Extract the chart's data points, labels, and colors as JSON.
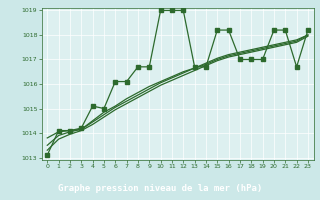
{
  "xlabel": "Graphe pression niveau de la mer (hPa)",
  "ylim": [
    1013.0,
    1019.0
  ],
  "xlim": [
    -0.5,
    23.5
  ],
  "yticks": [
    1013,
    1014,
    1015,
    1016,
    1017,
    1018,
    1019
  ],
  "xticks": [
    0,
    1,
    2,
    3,
    4,
    5,
    6,
    7,
    8,
    9,
    10,
    11,
    12,
    13,
    14,
    15,
    16,
    17,
    18,
    19,
    20,
    21,
    22,
    23
  ],
  "bg_color": "#cce8e8",
  "plot_bg": "#ddf0f0",
  "line_color": "#2d6a2d",
  "label_bg": "#3a7a3a",
  "label_fg": "#ffffff",
  "marker": "s",
  "markersize": 2.2,
  "linewidth": 0.9,
  "series_main": [
    1013.1,
    1014.1,
    1014.1,
    1014.2,
    1015.1,
    1015.0,
    1016.1,
    1016.1,
    1016.7,
    1016.7,
    1019.0,
    1019.0,
    1019.0,
    1016.7,
    1016.7,
    1018.2,
    1018.2,
    1017.0,
    1017.0,
    1017.0,
    1018.2,
    1018.2,
    1016.7,
    1018.2
  ],
  "series_trend1": [
    1013.8,
    1014.05,
    1014.1,
    1014.15,
    1014.5,
    1014.85,
    1015.1,
    1015.4,
    1015.65,
    1015.9,
    1016.1,
    1016.3,
    1016.5,
    1016.65,
    1016.8,
    1017.0,
    1017.15,
    1017.25,
    1017.35,
    1017.45,
    1017.55,
    1017.65,
    1017.75,
    1018.0
  ],
  "series_trend2": [
    1013.5,
    1013.9,
    1014.05,
    1014.15,
    1014.45,
    1014.75,
    1015.05,
    1015.3,
    1015.55,
    1015.8,
    1016.05,
    1016.25,
    1016.45,
    1016.65,
    1016.85,
    1017.05,
    1017.2,
    1017.3,
    1017.4,
    1017.5,
    1017.6,
    1017.7,
    1017.8,
    1018.0
  ],
  "series_trend3": [
    1013.3,
    1013.75,
    1013.95,
    1014.1,
    1014.35,
    1014.65,
    1014.95,
    1015.2,
    1015.45,
    1015.7,
    1015.95,
    1016.15,
    1016.35,
    1016.55,
    1016.75,
    1016.95,
    1017.1,
    1017.2,
    1017.3,
    1017.4,
    1017.5,
    1017.6,
    1017.7,
    1017.95
  ]
}
